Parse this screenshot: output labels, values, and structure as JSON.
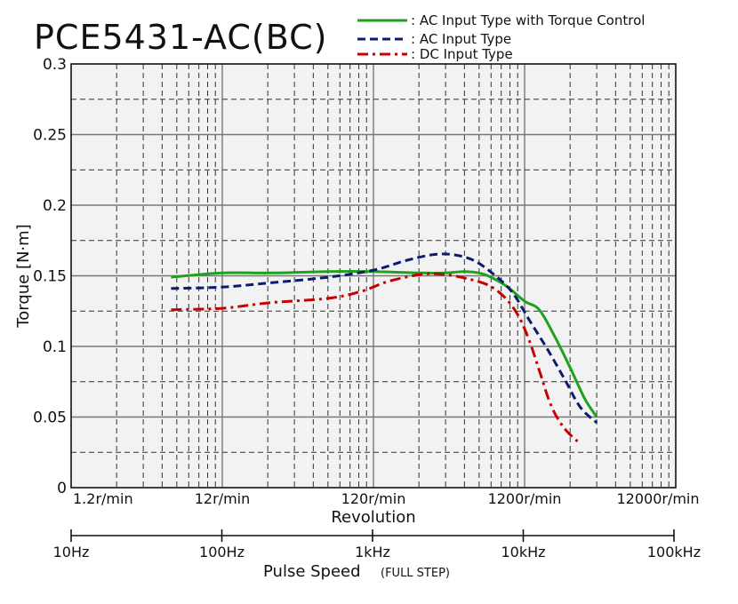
{
  "chart_data": {
    "type": "line",
    "title": "PCE5431-AC(BC)",
    "ylabel": "Torque [N·m]",
    "xlabel": "Revolution",
    "x2label": "Pulse Speed",
    "x2label_note": "(FULL STEP)",
    "x_scale": "log",
    "ylim": [
      0,
      0.3
    ],
    "y_ticks": [
      0,
      0.05,
      0.1,
      0.15,
      0.2,
      0.25,
      0.3
    ],
    "y_tick_labels": [
      "0",
      "0.05",
      "0.1",
      "0.15",
      "0.2",
      "0.25",
      "0.3"
    ],
    "x_ticks": [
      1.2,
      12,
      120,
      1200,
      12000
    ],
    "x_tick_labels": [
      "1.2r/min",
      "12r/min",
      "120r/min",
      "1200r/min",
      "12000r/min"
    ],
    "x2_ticks": [
      10,
      100,
      1000,
      10000,
      100000
    ],
    "x2_tick_labels": [
      "10Hz",
      "100Hz",
      "1kHz",
      "10kHz",
      "100kHz"
    ],
    "xlim": [
      1.2,
      12000
    ],
    "grid": true,
    "legend_position": "top-right",
    "series": [
      {
        "name": ": AC Input Type with Torque Control",
        "color": "#1fa01f",
        "dash": "solid",
        "x": [
          5.5,
          12,
          25,
          60,
          120,
          250,
          360,
          480,
          650,
          900,
          1200,
          1500,
          1900,
          2400,
          3000,
          3600
        ],
        "y": [
          0.149,
          0.152,
          0.152,
          0.153,
          0.153,
          0.152,
          0.152,
          0.153,
          0.151,
          0.143,
          0.132,
          0.126,
          0.107,
          0.085,
          0.063,
          0.05
        ]
      },
      {
        "name": ": AC Input Type",
        "color": "#0b1c70",
        "dash": "dash",
        "x": [
          5.5,
          12,
          25,
          60,
          120,
          200,
          300,
          400,
          550,
          750,
          1000,
          1300,
          1700,
          2200,
          2800,
          3600
        ],
        "y": [
          0.141,
          0.142,
          0.145,
          0.149,
          0.154,
          0.161,
          0.165,
          0.165,
          0.161,
          0.151,
          0.138,
          0.118,
          0.098,
          0.077,
          0.057,
          0.046
        ]
      },
      {
        "name": ": DC Input Type",
        "color": "#c80000",
        "dash": "dashdot",
        "x": [
          5.5,
          12,
          25,
          60,
          100,
          150,
          250,
          350,
          500,
          700,
          900,
          1100,
          1300,
          1500,
          1800,
          2200,
          2800
        ],
        "y": [
          0.126,
          0.127,
          0.131,
          0.134,
          0.139,
          0.146,
          0.151,
          0.151,
          0.148,
          0.143,
          0.134,
          0.121,
          0.103,
          0.083,
          0.058,
          0.042,
          0.031
        ]
      }
    ]
  }
}
